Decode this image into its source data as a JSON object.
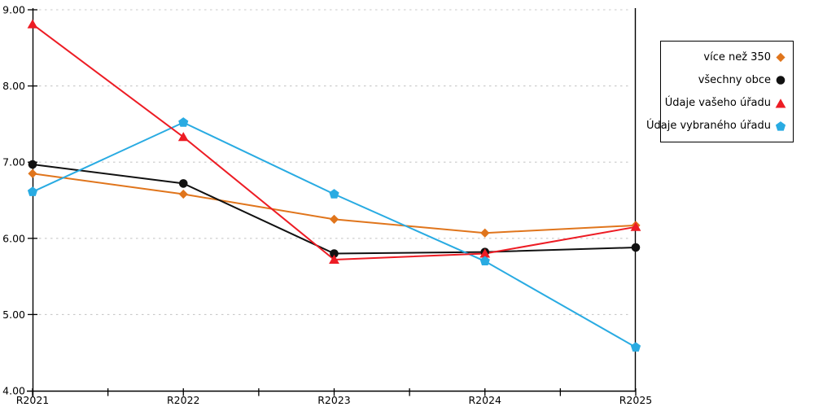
{
  "chart_data": {
    "type": "line",
    "categories": [
      "R2021",
      "R2022",
      "R2023",
      "R2024",
      "R2025"
    ],
    "series": [
      {
        "name": "více než 350",
        "color": "#E0751C",
        "marker": "diamond",
        "values": [
          6.85,
          6.58,
          6.25,
          6.07,
          6.17
        ]
      },
      {
        "name": "všechny obce",
        "color": "#111111",
        "marker": "circle",
        "values": [
          6.97,
          6.72,
          5.8,
          5.82,
          5.88
        ]
      },
      {
        "name": "Údaje vašeho úřadu",
        "color": "#ED1C24",
        "marker": "triangle",
        "values": [
          8.81,
          7.33,
          5.72,
          5.8,
          6.15
        ]
      },
      {
        "name": "Údaje vybraného úřadu",
        "color": "#29ABE2",
        "marker": "pentagon",
        "values": [
          6.61,
          7.52,
          6.58,
          5.7,
          4.57
        ]
      }
    ],
    "title": "",
    "xlabel": "",
    "ylabel": "",
    "ylim": [
      4,
      9
    ],
    "y_tick_labels": [
      "4.00",
      "5.00",
      "6.00",
      "7.00",
      "8.00",
      "9.00"
    ],
    "grid": "horizontal-dotted",
    "legend_position": "outside-top-right",
    "line_draw_order": [
      "více než 350",
      "všechny obce",
      "Údaje vybraného úřadu",
      "Údaje vašeho úřadu"
    ]
  },
  "colors": {
    "background": "#FFFFFF",
    "axis": "#000000",
    "gridline": "#C8C8C8",
    "text": "#000000"
  }
}
